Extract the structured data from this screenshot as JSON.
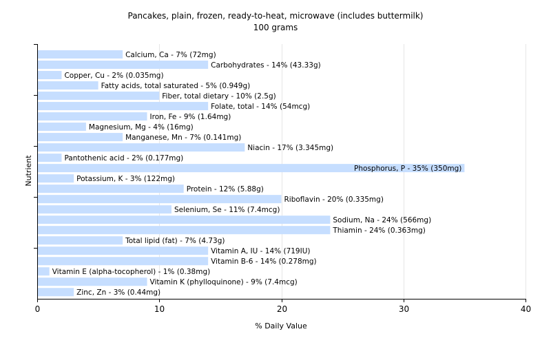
{
  "chart_data": {
    "type": "bar",
    "orientation": "horizontal",
    "title": "Pancakes, plain, frozen, ready-to-heat, microwave (includes buttermilk)",
    "subtitle": "100 grams",
    "xlabel": "% Daily Value",
    "ylabel": "Nutrient",
    "xlim": [
      0,
      40
    ],
    "xticks": [
      0,
      10,
      20,
      30,
      40
    ],
    "grid": true,
    "bar_color": "#c6deff",
    "categories": [
      "Calcium, Ca - 7% (72mg)",
      "Carbohydrates - 14% (43.33g)",
      "Copper, Cu - 2% (0.035mg)",
      "Fatty acids, total saturated - 5% (0.949g)",
      "Fiber, total dietary - 10% (2.5g)",
      "Folate, total - 14% (54mcg)",
      "Iron, Fe - 9% (1.64mg)",
      "Magnesium, Mg - 4% (16mg)",
      "Manganese, Mn - 7% (0.141mg)",
      "Niacin - 17% (3.345mg)",
      "Pantothenic acid - 2% (0.177mg)",
      "Phosphorus, P - 35% (350mg)",
      "Potassium, K - 3% (122mg)",
      "Protein - 12% (5.88g)",
      "Riboflavin - 20% (0.335mg)",
      "Selenium, Se - 11% (7.4mcg)",
      "Sodium, Na - 24% (566mg)",
      "Thiamin - 24% (0.363mg)",
      "Total lipid (fat) - 7% (4.73g)",
      "Vitamin A, IU - 14% (719IU)",
      "Vitamin B-6 - 14% (0.278mg)",
      "Vitamin E (alpha-tocopherol) - 1% (0.38mg)",
      "Vitamin K (phylloquinone) - 9% (7.4mcg)",
      "Zinc, Zn - 3% (0.44mg)"
    ],
    "values": [
      7,
      14,
      2,
      5,
      10,
      14,
      9,
      4,
      7,
      17,
      2,
      35,
      3,
      12,
      20,
      11,
      24,
      24,
      7,
      14,
      14,
      1,
      9,
      3
    ],
    "inside_label_categories": [
      "Phosphorus, P - 35% (350mg)"
    ]
  }
}
